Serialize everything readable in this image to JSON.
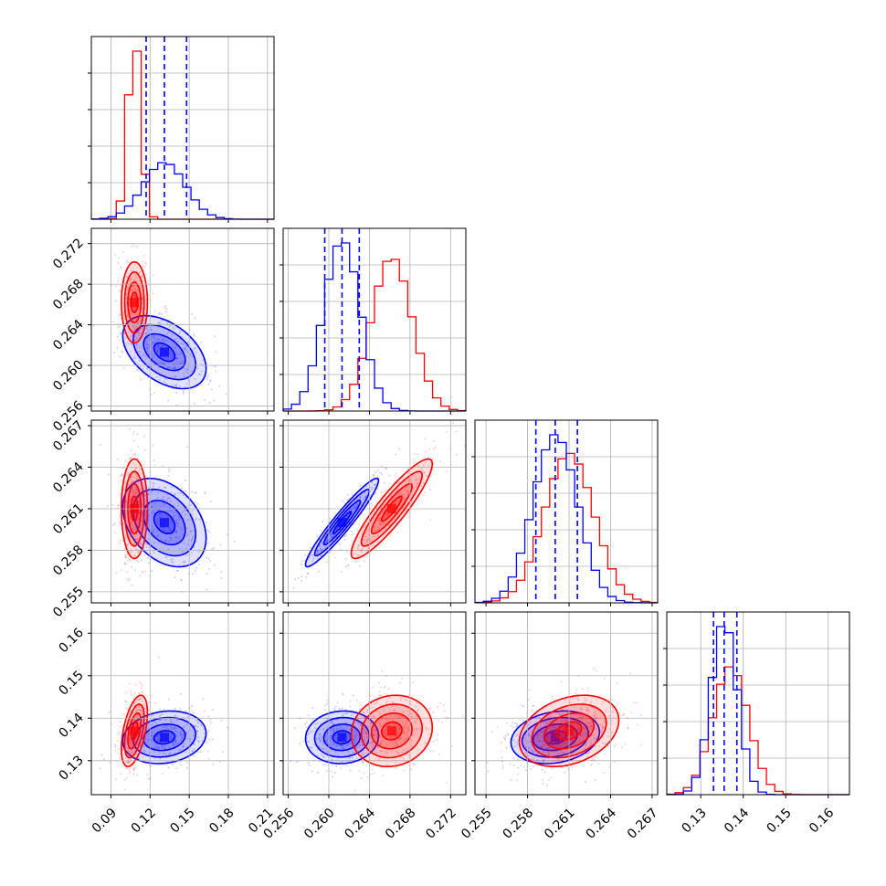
{
  "chart_data": {
    "type": "corner",
    "parameters": 4,
    "series": [
      {
        "color": "#0000ff",
        "mean": [
          0.131,
          0.2613,
          0.26,
          0.1355
        ],
        "sd": [
          0.016,
          0.0018,
          0.0016,
          0.0031
        ],
        "corr": [
          [
            1,
            -0.45,
            -0.35,
            0.15
          ],
          [
            -0.45,
            1,
            0.95,
            0.05
          ],
          [
            -0.35,
            0.95,
            1,
            0.2
          ],
          [
            0.15,
            0.05,
            0.2,
            1
          ]
        ],
        "quantiles": [
          [
            0.117,
            0.131,
            0.148
          ],
          [
            0.2596,
            0.2613,
            0.263
          ],
          [
            0.2586,
            0.26,
            0.2616
          ],
          [
            0.133,
            0.1355,
            0.1385
          ]
        ]
      },
      {
        "color": "#ff0000",
        "mean": [
          0.108,
          0.2662,
          0.261,
          0.137
        ],
        "sd": [
          0.005,
          0.002,
          0.0018,
          0.0042
        ],
        "corr": [
          [
            1,
            0.0,
            0.0,
            0.5
          ],
          [
            0.0,
            1,
            0.9,
            0.1
          ],
          [
            0.0,
            0.9,
            1,
            0.3
          ],
          [
            0.5,
            0.1,
            0.3,
            1
          ]
        ]
      }
    ],
    "axes": [
      {
        "range": [
          0.075,
          0.215
        ],
        "ticks": [
          0.09,
          0.12,
          0.15,
          0.18,
          0.21
        ],
        "ticklabels": [
          "0.09",
          "0.12",
          "0.15",
          "0.18",
          "0.21"
        ]
      },
      {
        "range": [
          0.2555,
          0.2735
        ],
        "ticks": [
          0.256,
          0.26,
          0.264,
          0.268,
          0.272
        ],
        "ticklabels": [
          "0.256",
          "0.260",
          "0.264",
          "0.268",
          "0.272"
        ]
      },
      {
        "range": [
          0.2542,
          0.2674
        ],
        "ticks": [
          0.255,
          0.258,
          0.261,
          0.264,
          0.267
        ],
        "ticklabels": [
          "0.255",
          "0.258",
          "0.261",
          "0.264",
          "0.267"
        ]
      },
      {
        "range": [
          0.122,
          0.165
        ],
        "ticks": [
          0.13,
          0.14,
          0.15,
          0.16
        ],
        "ticklabels": [
          "0.13",
          "0.14",
          "0.15",
          "0.16"
        ]
      }
    ],
    "grid": true
  }
}
